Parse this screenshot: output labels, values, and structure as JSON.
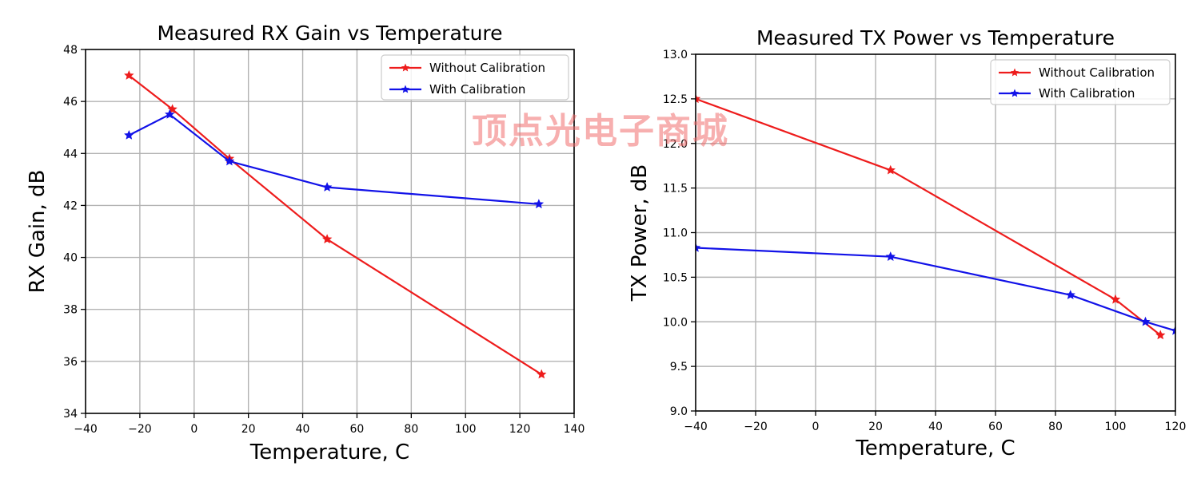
{
  "watermark": "顶点光电子商城",
  "colors": {
    "red": "#ee1c1c",
    "blue": "#1212e8",
    "grid": "#b3b3b3"
  },
  "chart_data": [
    {
      "type": "line",
      "title": "Measured RX Gain vs Temperature",
      "xlabel": "Temperature, C",
      "ylabel": "RX Gain, dB",
      "xlim": [
        -40,
        140
      ],
      "ylim": [
        34,
        48
      ],
      "xticks": [
        -40,
        -20,
        0,
        20,
        40,
        60,
        80,
        100,
        120,
        140
      ],
      "yticks": [
        34,
        36,
        38,
        40,
        42,
        44,
        46,
        48
      ],
      "xtick_labels": [
        "−40",
        "−20",
        "0",
        "20",
        "40",
        "60",
        "80",
        "100",
        "120",
        "140"
      ],
      "ytick_labels": [
        "34",
        "36",
        "38",
        "40",
        "42",
        "44",
        "46",
        "48"
      ],
      "grid": true,
      "legend_position": "top-right",
      "series": [
        {
          "name": "Without Calibration",
          "color": "#ee1c1c",
          "x": [
            -24,
            -8,
            13,
            49,
            128
          ],
          "y": [
            47.0,
            45.7,
            43.8,
            40.7,
            35.5
          ]
        },
        {
          "name": "With Calibration",
          "color": "#1212e8",
          "x": [
            -24,
            -9,
            13,
            49,
            127
          ],
          "y": [
            44.7,
            45.5,
            43.7,
            42.7,
            42.05
          ]
        }
      ]
    },
    {
      "type": "line",
      "title": "Measured TX Power vs Temperature",
      "xlabel": "Temperature, C",
      "ylabel": "TX Power, dB",
      "xlim": [
        -40,
        120
      ],
      "ylim": [
        9.0,
        13.0
      ],
      "xticks": [
        -40,
        -20,
        0,
        20,
        40,
        60,
        80,
        100,
        120
      ],
      "yticks": [
        9.0,
        9.5,
        10.0,
        10.5,
        11.0,
        11.5,
        12.0,
        12.5,
        13.0
      ],
      "xtick_labels": [
        "−40",
        "−20",
        "0",
        "20",
        "40",
        "60",
        "80",
        "100",
        "120"
      ],
      "ytick_labels": [
        "9.0",
        "9.5",
        "10.0",
        "10.5",
        "11.0",
        "11.5",
        "12.0",
        "12.5",
        "13.0"
      ],
      "grid": true,
      "legend_position": "top-right",
      "series": [
        {
          "name": "Without Calibration",
          "color": "#ee1c1c",
          "x": [
            -40,
            25,
            100,
            115
          ],
          "y": [
            12.5,
            11.7,
            10.25,
            9.85
          ]
        },
        {
          "name": "With Calibration",
          "color": "#1212e8",
          "x": [
            -40,
            25,
            85,
            110,
            120
          ],
          "y": [
            10.83,
            10.73,
            10.3,
            10.0,
            9.9
          ]
        }
      ]
    }
  ]
}
